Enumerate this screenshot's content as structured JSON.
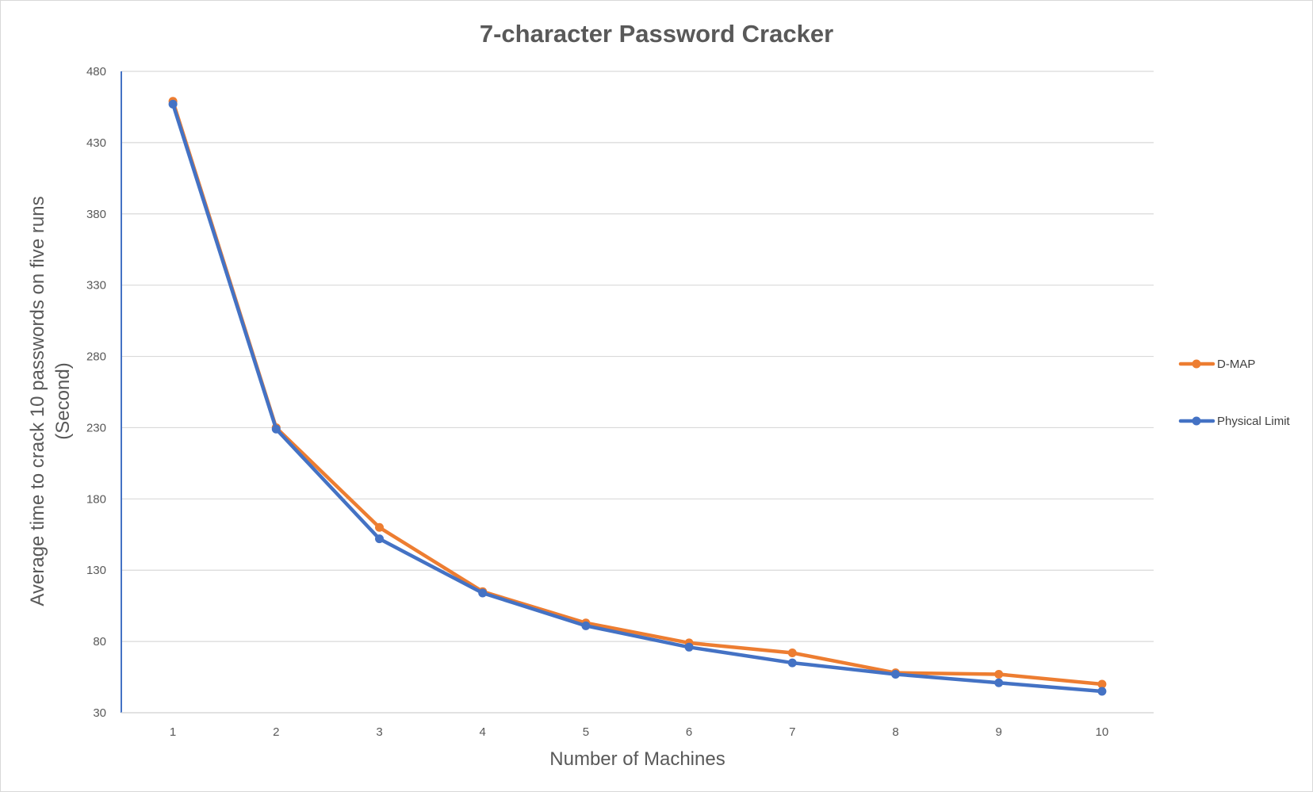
{
  "chart_data": {
    "type": "line",
    "title": "7-character Password Cracker",
    "xlabel": "Number of Machines",
    "ylabel_line1": "Average time to crack 10 passwords on five runs",
    "ylabel_line2": "(Second)",
    "categories": [
      "1",
      "2",
      "3",
      "4",
      "5",
      "6",
      "7",
      "8",
      "9",
      "10"
    ],
    "x": [
      1,
      2,
      3,
      4,
      5,
      6,
      7,
      8,
      9,
      10
    ],
    "ylim": [
      30,
      480
    ],
    "yticks": [
      30,
      80,
      130,
      180,
      230,
      280,
      330,
      380,
      430,
      480
    ],
    "ytick_labels": [
      "30",
      "80",
      "130",
      "180",
      "230",
      "280",
      "330",
      "380",
      "430",
      "480"
    ],
    "grid": true,
    "legend_position": "right",
    "series": [
      {
        "name": "D-MAP",
        "color": "#ED7D31",
        "values": [
          459,
          230,
          160,
          115,
          93,
          79,
          72,
          58,
          57,
          50
        ]
      },
      {
        "name": "Physical Limit",
        "color": "#4472C4",
        "values": [
          457,
          229,
          152,
          114,
          91,
          76,
          65,
          57,
          51,
          45
        ]
      }
    ]
  }
}
